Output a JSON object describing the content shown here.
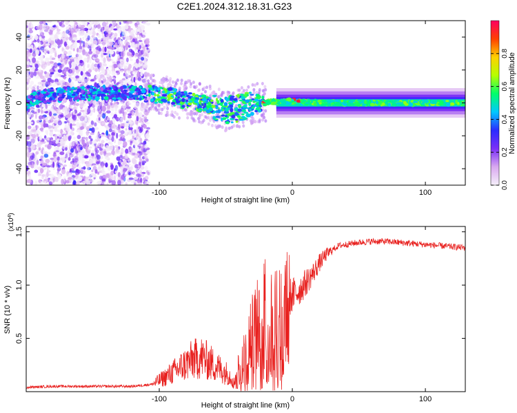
{
  "figure_title": "C2E1.2024.312.18.31.G23",
  "chart_data": [
    {
      "type": "heatmap",
      "xlabel": "Height of straight line (km)",
      "ylabel": "Frequency (Hz)",
      "xlim": [
        -200,
        130
      ],
      "ylim": [
        -50,
        50
      ],
      "x_ticks": [
        -100,
        0,
        100
      ],
      "y_ticks": [
        -40,
        -20,
        0,
        20,
        40
      ],
      "colorbar": {
        "label": "Normalized spectral amplitude",
        "range": [
          0,
          1
        ],
        "ticks": [
          0.0,
          0.2,
          0.4,
          0.6,
          0.8
        ],
        "tick_labels": [
          "0.0",
          "0.2",
          "0.4",
          "0.6",
          "0.8"
        ],
        "colormap": [
          "#f5f0fa",
          "#d9a9f0",
          "#7b2ff7",
          "#2b2bff",
          "#00c8ff",
          "#00ff6a",
          "#b6ff00",
          "#ffd000",
          "#ff4000",
          "#ff0060"
        ]
      },
      "ridge_frequency": [
        {
          "x": -198,
          "y": 2
        },
        {
          "x": -180,
          "y": 5
        },
        {
          "x": -150,
          "y": 6
        },
        {
          "x": -120,
          "y": 6
        },
        {
          "x": -100,
          "y": 5
        },
        {
          "x": -80,
          "y": 2
        },
        {
          "x": -60,
          "y": -2
        },
        {
          "x": -50,
          "y": -5
        },
        {
          "x": -40,
          "y": -3
        },
        {
          "x": -25,
          "y": 0
        },
        {
          "x": -10,
          "y": 1
        },
        {
          "x": 0,
          "y": 1
        },
        {
          "x": 20,
          "y": 0
        },
        {
          "x": 60,
          "y": 0
        },
        {
          "x": 100,
          "y": 0
        },
        {
          "x": 130,
          "y": 0
        }
      ]
    },
    {
      "type": "line",
      "xlabel": "Height of straight line (km)",
      "ylabel": "SNR (10 * v/v)",
      "y_multiplier": "(x10^4)",
      "xlim": [
        -200,
        130
      ],
      "ylim": [
        0,
        1.55
      ],
      "x_ticks": [
        -100,
        0,
        100
      ],
      "y_ticks": [
        0.5,
        1.0,
        1.5
      ],
      "y_tick_labels": [
        "0.5",
        "1.0",
        "1.5"
      ],
      "color": "#e8201e",
      "series": [
        {
          "x": [
            -200,
            -180,
            -160,
            -140,
            -120,
            -105,
            -95,
            -85,
            -75,
            -68,
            -60,
            -50,
            -45,
            -38,
            -32,
            -28,
            -24,
            -20,
            -16,
            -12,
            -8,
            -4,
            0,
            5,
            10,
            15,
            20,
            25,
            30,
            35,
            40,
            50,
            60,
            70,
            80,
            90,
            100,
            110,
            120,
            130
          ],
          "y": [
            0.04,
            0.05,
            0.05,
            0.05,
            0.05,
            0.07,
            0.14,
            0.22,
            0.3,
            0.32,
            0.26,
            0.18,
            0.13,
            0.3,
            0.55,
            0.7,
            0.8,
            0.86,
            0.88,
            0.82,
            0.85,
            0.88,
            0.9,
            0.95,
            1.02,
            1.1,
            1.2,
            1.28,
            1.33,
            1.37,
            1.38,
            1.4,
            1.41,
            1.41,
            1.4,
            1.39,
            1.38,
            1.37,
            1.36,
            1.35
          ]
        }
      ]
    }
  ]
}
